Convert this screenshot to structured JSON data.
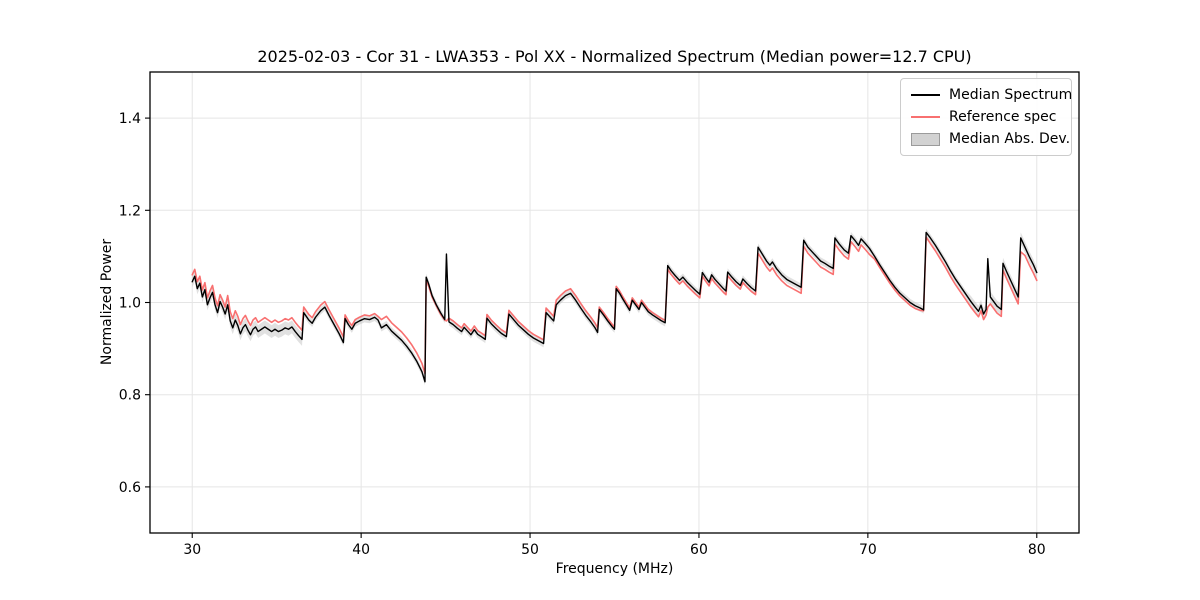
{
  "figure": {
    "title": "2025-02-03 - Cor 31 - LWA353 - Pol XX - Normalized Spectrum (Median power=12.7 CPU)",
    "xlabel": "Frequency (MHz)",
    "ylabel": "Normalized Power"
  },
  "legend": {
    "items": [
      {
        "label": "Median Spectrum",
        "type": "line",
        "color": "#000000"
      },
      {
        "label": "Reference spec",
        "type": "line",
        "color": "#f87070"
      },
      {
        "label": "Median Abs. Dev.",
        "type": "patch",
        "color": "#d2d2d2",
        "edge": "#9b9b9b"
      }
    ]
  },
  "chart_data": {
    "type": "line",
    "title": "2025-02-03 - Cor 31 - LWA353 - Pol XX - Normalized Spectrum (Median power=12.7 CPU)",
    "xlabel": "Frequency (MHz)",
    "ylabel": "Normalized Power",
    "xlim": [
      27.5,
      82.5
    ],
    "ylim": [
      0.5,
      1.5
    ],
    "xticks": [
      30,
      40,
      50,
      60,
      70,
      80
    ],
    "yticks": [
      0.6,
      0.8,
      1.0,
      1.2,
      1.4
    ],
    "grid": true,
    "grid_color": "#e5e5e5",
    "legend_position": "upper right",
    "x": [
      30.0,
      30.15,
      30.3,
      30.45,
      30.6,
      30.75,
      30.9,
      31.05,
      31.2,
      31.35,
      31.5,
      31.65,
      31.8,
      31.95,
      32.1,
      32.25,
      32.4,
      32.55,
      32.7,
      32.85,
      33.0,
      33.15,
      33.3,
      33.45,
      33.6,
      33.75,
      33.9,
      34.1,
      34.3,
      34.5,
      34.7,
      34.9,
      35.1,
      35.3,
      35.5,
      35.7,
      35.9,
      36.1,
      36.3,
      36.5,
      36.6,
      36.75,
      36.9,
      37.1,
      37.3,
      37.6,
      37.85,
      38.1,
      38.4,
      38.7,
      38.95,
      39.05,
      39.25,
      39.45,
      39.65,
      39.9,
      40.2,
      40.5,
      40.8,
      41.0,
      41.2,
      41.5,
      41.8,
      42.1,
      42.4,
      42.7,
      43.0,
      43.3,
      43.6,
      43.78,
      43.85,
      44.0,
      44.2,
      44.45,
      44.7,
      44.95,
      45.05,
      45.2,
      45.45,
      45.7,
      45.95,
      46.1,
      46.3,
      46.5,
      46.7,
      46.9,
      47.15,
      47.35,
      47.45,
      47.7,
      48.0,
      48.3,
      48.6,
      48.75,
      49.0,
      49.3,
      49.6,
      49.9,
      50.2,
      50.5,
      50.8,
      50.95,
      51.2,
      51.4,
      51.55,
      51.8,
      52.1,
      52.4,
      52.7,
      53.0,
      53.3,
      53.6,
      53.85,
      54.0,
      54.1,
      54.35,
      54.6,
      54.85,
      55.0,
      55.1,
      55.3,
      55.5,
      55.7,
      55.9,
      56.05,
      56.25,
      56.45,
      56.6,
      56.8,
      57.0,
      57.25,
      57.5,
      57.75,
      58.0,
      58.15,
      58.35,
      58.6,
      58.85,
      59.05,
      59.3,
      59.55,
      59.8,
      60.05,
      60.2,
      60.4,
      60.6,
      60.75,
      60.95,
      61.2,
      61.45,
      61.6,
      61.7,
      61.95,
      62.2,
      62.45,
      62.6,
      62.85,
      63.1,
      63.35,
      63.5,
      63.75,
      64.0,
      64.2,
      64.35,
      64.6,
      64.9,
      65.2,
      65.5,
      65.8,
      66.05,
      66.2,
      66.45,
      66.7,
      66.95,
      67.2,
      67.45,
      67.7,
      67.95,
      68.05,
      68.3,
      68.6,
      68.85,
      69.0,
      69.25,
      69.45,
      69.6,
      69.85,
      70.1,
      70.4,
      70.7,
      71.0,
      71.3,
      71.6,
      71.9,
      72.2,
      72.5,
      72.8,
      73.1,
      73.3,
      73.45,
      73.7,
      74.0,
      74.3,
      74.6,
      74.9,
      75.2,
      75.5,
      75.8,
      76.1,
      76.35,
      76.55,
      76.7,
      76.85,
      77.0,
      77.1,
      77.25,
      77.45,
      77.65,
      77.9,
      78.0,
      78.2,
      78.45,
      78.7,
      78.9,
      79.05,
      79.3,
      79.55,
      79.8,
      80.0
    ],
    "series": [
      {
        "name": "Median Spectrum",
        "color": "#000000",
        "width": 1.4,
        "values": [
          1.045,
          1.057,
          1.03,
          1.042,
          1.012,
          1.028,
          0.995,
          1.01,
          1.022,
          0.995,
          0.978,
          1.002,
          0.99,
          0.975,
          0.995,
          0.96,
          0.945,
          0.962,
          0.95,
          0.932,
          0.945,
          0.952,
          0.94,
          0.93,
          0.942,
          0.947,
          0.937,
          0.942,
          0.947,
          0.942,
          0.937,
          0.942,
          0.937,
          0.94,
          0.945,
          0.942,
          0.947,
          0.937,
          0.928,
          0.92,
          0.978,
          0.97,
          0.962,
          0.955,
          0.968,
          0.982,
          0.99,
          0.972,
          0.952,
          0.932,
          0.913,
          0.965,
          0.952,
          0.942,
          0.955,
          0.96,
          0.965,
          0.963,
          0.968,
          0.962,
          0.945,
          0.952,
          0.938,
          0.928,
          0.918,
          0.905,
          0.89,
          0.872,
          0.85,
          0.828,
          1.055,
          1.04,
          1.015,
          0.995,
          0.978,
          0.963,
          1.105,
          0.958,
          0.952,
          0.944,
          0.937,
          0.946,
          0.938,
          0.93,
          0.941,
          0.931,
          0.925,
          0.92,
          0.966,
          0.954,
          0.943,
          0.933,
          0.926,
          0.975,
          0.964,
          0.951,
          0.941,
          0.931,
          0.923,
          0.917,
          0.911,
          0.978,
          0.968,
          0.96,
          0.995,
          1.005,
          1.015,
          1.02,
          1.005,
          0.988,
          0.972,
          0.958,
          0.945,
          0.935,
          0.985,
          0.973,
          0.96,
          0.948,
          0.942,
          1.03,
          1.02,
          1.007,
          0.995,
          0.983,
          1.005,
          0.995,
          0.985,
          1.0,
          0.99,
          0.98,
          0.973,
          0.967,
          0.961,
          0.956,
          1.08,
          1.069,
          1.058,
          1.048,
          1.055,
          1.044,
          1.035,
          1.026,
          1.018,
          1.065,
          1.054,
          1.044,
          1.06,
          1.05,
          1.04,
          1.03,
          1.025,
          1.066,
          1.055,
          1.045,
          1.037,
          1.051,
          1.041,
          1.032,
          1.025,
          1.12,
          1.105,
          1.09,
          1.081,
          1.088,
          1.073,
          1.06,
          1.05,
          1.044,
          1.038,
          1.033,
          1.135,
          1.12,
          1.11,
          1.1,
          1.09,
          1.085,
          1.079,
          1.074,
          1.14,
          1.127,
          1.114,
          1.107,
          1.145,
          1.134,
          1.124,
          1.138,
          1.128,
          1.117,
          1.1,
          1.082,
          1.065,
          1.048,
          1.033,
          1.02,
          1.01,
          1.0,
          0.993,
          0.988,
          0.984,
          1.152,
          1.14,
          1.124,
          1.106,
          1.088,
          1.068,
          1.05,
          1.034,
          1.018,
          1.002,
          0.99,
          0.981,
          0.994,
          0.975,
          0.985,
          1.095,
          1.012,
          1.002,
          0.992,
          0.985,
          1.085,
          1.068,
          1.048,
          1.028,
          1.012,
          1.14,
          1.12,
          1.1,
          1.082,
          1.065
        ]
      },
      {
        "name": "Reference spec",
        "color": "#f87070",
        "width": 1.6,
        "values": [
          1.06,
          1.072,
          1.045,
          1.057,
          1.027,
          1.043,
          1.01,
          1.025,
          1.037,
          1.01,
          0.993,
          1.017,
          1.005,
          0.99,
          1.015,
          0.98,
          0.965,
          0.982,
          0.97,
          0.952,
          0.965,
          0.972,
          0.96,
          0.95,
          0.962,
          0.967,
          0.957,
          0.962,
          0.967,
          0.962,
          0.957,
          0.962,
          0.957,
          0.96,
          0.965,
          0.962,
          0.967,
          0.957,
          0.948,
          0.94,
          0.99,
          0.982,
          0.974,
          0.967,
          0.98,
          0.994,
          1.002,
          0.984,
          0.964,
          0.944,
          0.925,
          0.973,
          0.96,
          0.95,
          0.963,
          0.968,
          0.973,
          0.971,
          0.976,
          0.97,
          0.963,
          0.97,
          0.956,
          0.946,
          0.936,
          0.923,
          0.908,
          0.89,
          0.868,
          0.846,
          1.048,
          1.035,
          1.012,
          0.993,
          0.975,
          0.962,
          0.96,
          0.966,
          0.96,
          0.952,
          0.945,
          0.954,
          0.946,
          0.938,
          0.949,
          0.939,
          0.933,
          0.928,
          0.974,
          0.962,
          0.951,
          0.941,
          0.934,
          0.983,
          0.972,
          0.959,
          0.949,
          0.939,
          0.931,
          0.925,
          0.919,
          0.988,
          0.978,
          0.97,
          1.005,
          1.015,
          1.025,
          1.03,
          1.015,
          0.998,
          0.982,
          0.968,
          0.955,
          0.945,
          0.99,
          0.978,
          0.965,
          0.953,
          0.947,
          1.035,
          1.025,
          1.012,
          1.0,
          0.988,
          1.01,
          1.0,
          0.99,
          1.005,
          0.995,
          0.985,
          0.978,
          0.972,
          0.966,
          0.961,
          1.072,
          1.061,
          1.05,
          1.04,
          1.047,
          1.036,
          1.027,
          1.018,
          1.01,
          1.057,
          1.046,
          1.036,
          1.052,
          1.042,
          1.032,
          1.022,
          1.017,
          1.058,
          1.047,
          1.037,
          1.029,
          1.043,
          1.033,
          1.024,
          1.017,
          1.107,
          1.092,
          1.077,
          1.068,
          1.075,
          1.06,
          1.047,
          1.037,
          1.031,
          1.025,
          1.02,
          1.122,
          1.107,
          1.097,
          1.087,
          1.077,
          1.072,
          1.066,
          1.061,
          1.127,
          1.114,
          1.101,
          1.094,
          1.132,
          1.121,
          1.111,
          1.125,
          1.115,
          1.104,
          1.094,
          1.076,
          1.059,
          1.042,
          1.027,
          1.014,
          1.004,
          0.994,
          0.987,
          0.983,
          0.982,
          1.142,
          1.128,
          1.112,
          1.094,
          1.076,
          1.056,
          1.038,
          1.022,
          1.006,
          0.99,
          0.978,
          0.969,
          0.982,
          0.963,
          0.973,
          0.99,
          0.997,
          0.987,
          0.977,
          0.97,
          1.07,
          1.053,
          1.033,
          1.013,
          0.997,
          1.11,
          1.102,
          1.082,
          1.064,
          1.048
        ]
      }
    ],
    "band": {
      "name": "Median Abs. Dev.",
      "around": "Median Spectrum",
      "color": "#bdbdbd",
      "opacity": 0.45,
      "halfwidth_segments": [
        [
          27.5,
          32.1,
          0.012
        ],
        [
          32.1,
          36.6,
          0.014
        ],
        [
          36.6,
          76.0,
          0.008
        ],
        [
          76.0,
          82.5,
          0.012
        ]
      ]
    }
  }
}
